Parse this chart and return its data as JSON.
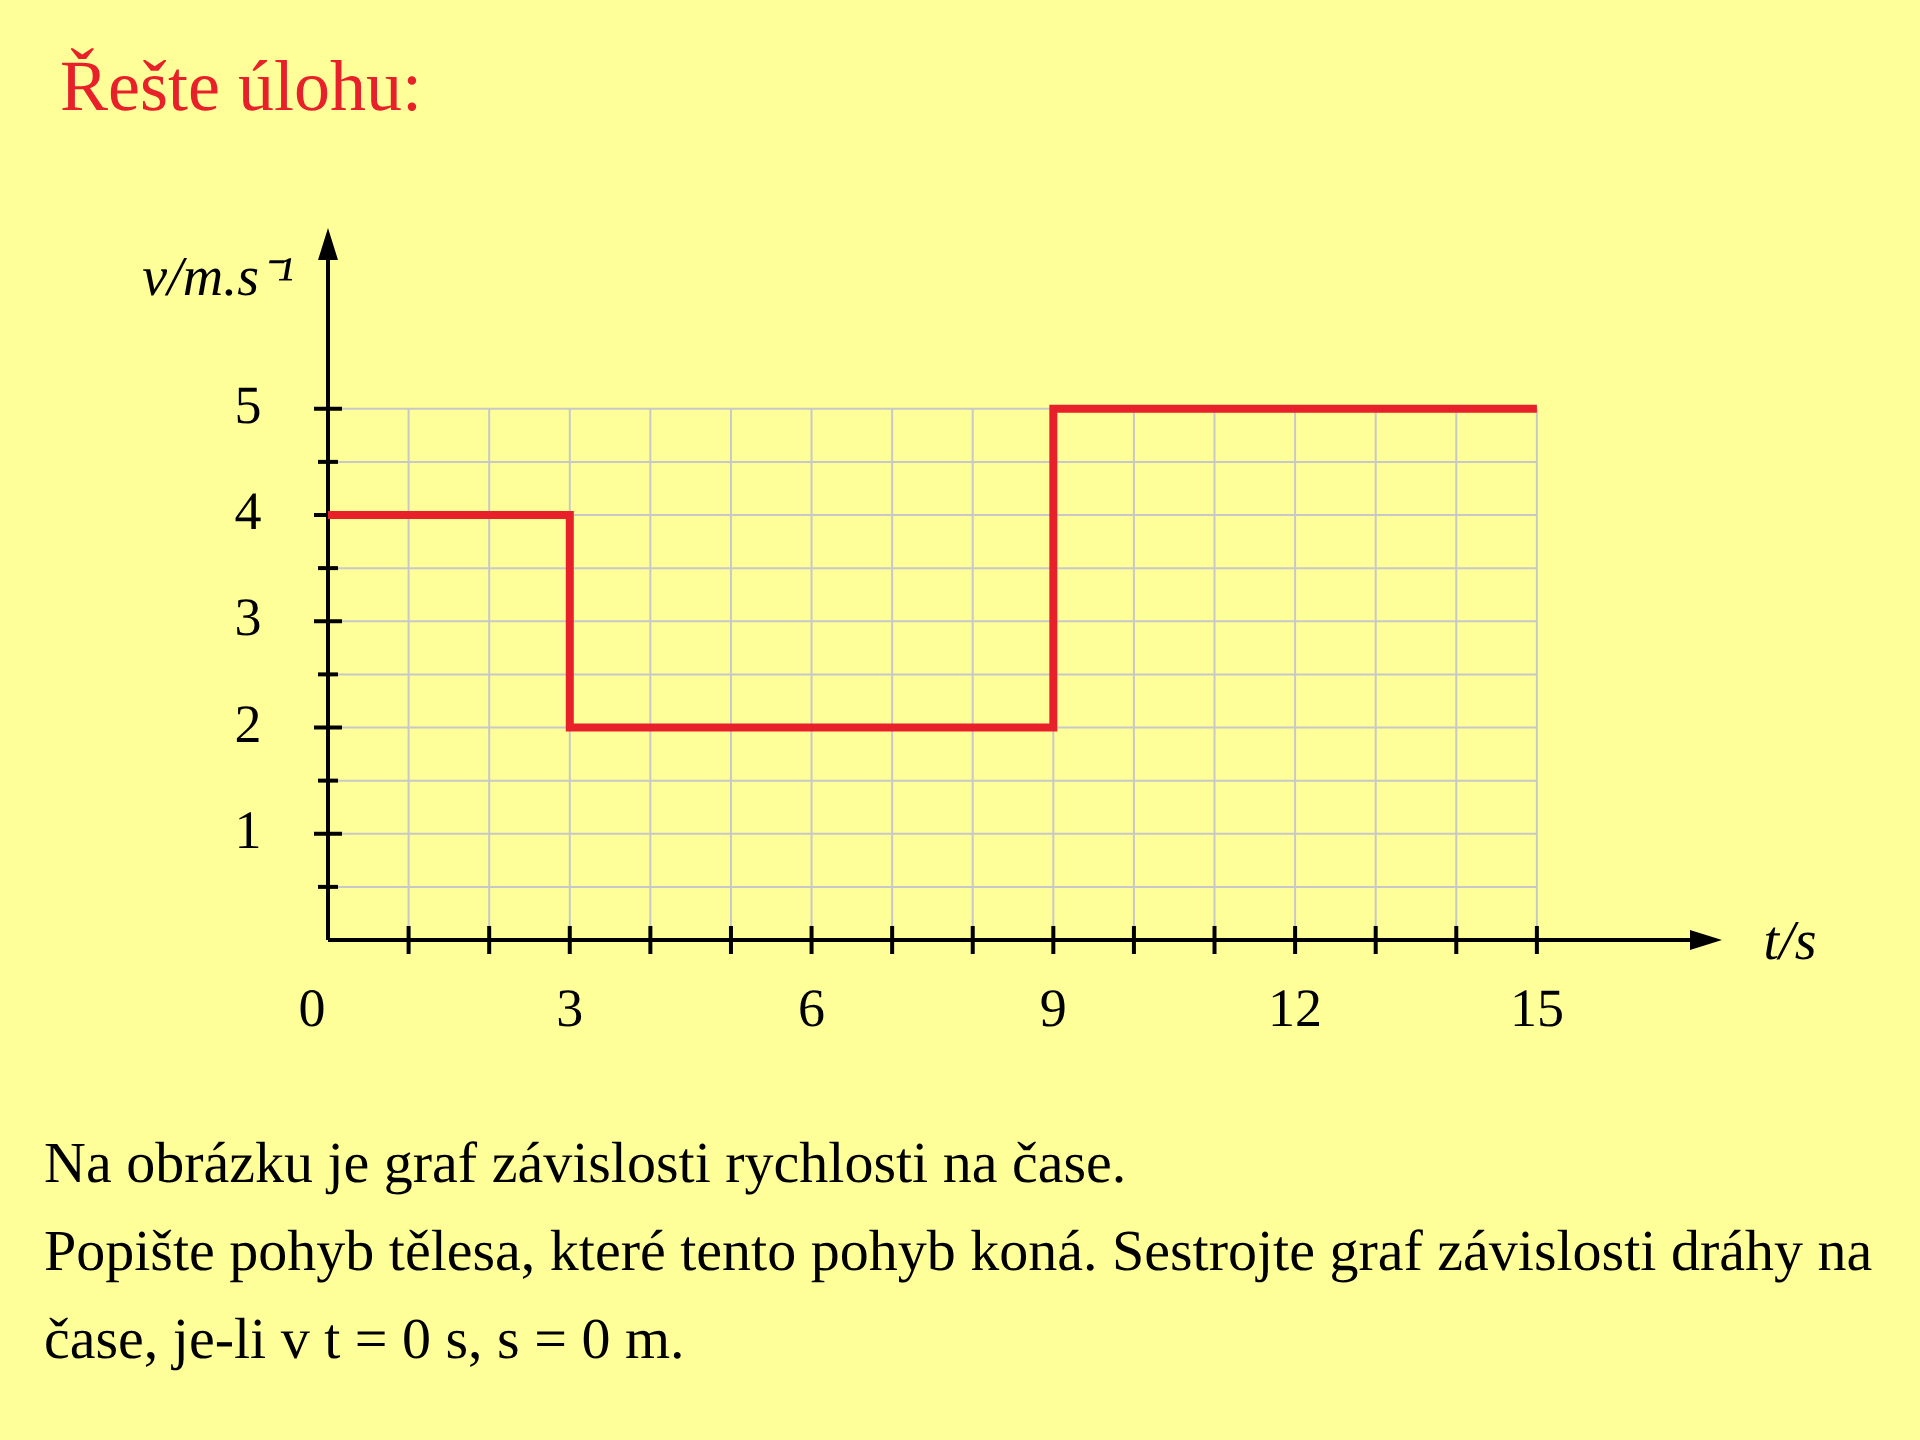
{
  "chart_data": {
    "type": "step",
    "title": "Řešte úlohu:",
    "xlabel": "t/s",
    "ylabel": "v/m.s⁻¹",
    "x": [
      0,
      3,
      9,
      15
    ],
    "values": [
      4,
      2,
      5,
      5
    ],
    "color": "#e8202a",
    "xlim": [
      0,
      16.9
    ],
    "ylim": [
      0,
      6.4
    ],
    "xticks": [
      0,
      {
        "value": 1,
        "label": null
      },
      {
        "value": 2,
        "label": null
      },
      3,
      {
        "value": 4,
        "label": null
      },
      {
        "value": 5,
        "label": null
      },
      6,
      {
        "value": 7,
        "label": null
      },
      {
        "value": 8,
        "label": null
      },
      9,
      {
        "value": 10,
        "label": null
      },
      {
        "value": 11,
        "label": null
      },
      12,
      {
        "value": 13,
        "label": null
      },
      {
        "value": 14,
        "label": null
      },
      15
    ],
    "yticks": [
      {
        "value": 0,
        "label": null
      },
      {
        "value": 0.5,
        "label": null
      },
      1,
      {
        "value": 1.5,
        "label": null
      },
      2,
      {
        "value": 2.5,
        "label": null
      },
      3,
      {
        "value": 3.5,
        "label": null
      },
      4,
      {
        "value": 4.5,
        "label": null
      },
      5
    ],
    "grid": true,
    "annotations": [
      "Na obrázku je graf závislosti rychlosti na čase.\nPopište pohyb tělesa, které tento pohyb koná. Sestrojte graf závislosti dráhy na čase, je-li v t = 0 s, s = 0 m."
    ]
  }
}
